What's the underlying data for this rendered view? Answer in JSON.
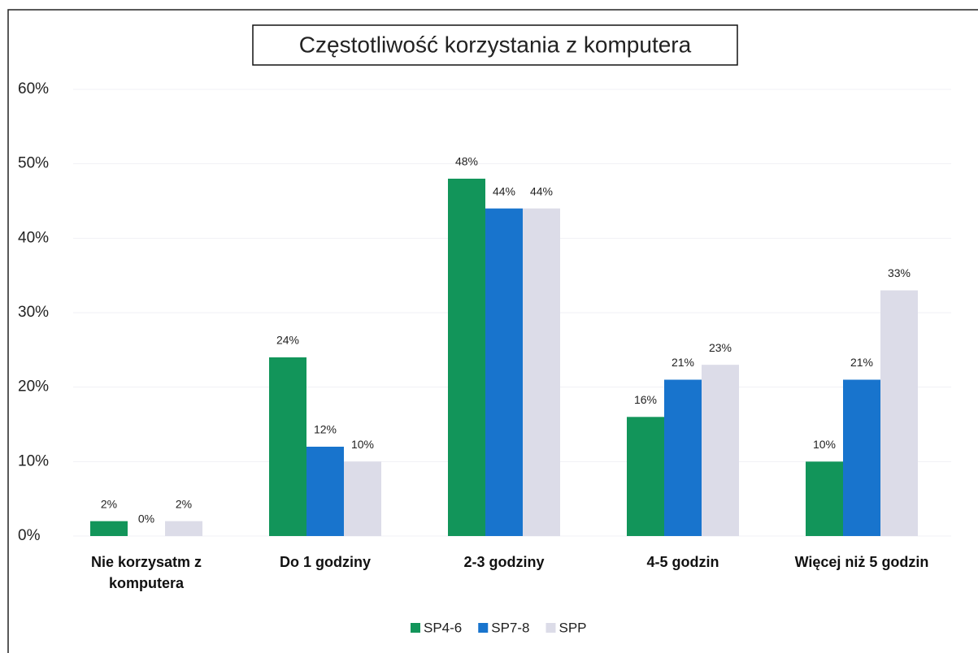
{
  "chart_data": {
    "type": "bar",
    "title": "Częstotliwość korzystania z komputera",
    "categories": [
      "Nie korzysatm z komputera",
      "Do 1 godziny",
      "2-3 godziny",
      "4-5 godzin",
      "Więcej niż 5 godzin"
    ],
    "series": [
      {
        "name": "SP4-6",
        "color": "#12955a",
        "values": [
          2,
          24,
          48,
          16,
          10
        ],
        "value_labels": [
          "2%",
          "24%",
          "48%",
          "16%",
          "10%"
        ]
      },
      {
        "name": "SP7-8",
        "color": "#1874cd",
        "values": [
          0,
          12,
          44,
          21,
          21
        ],
        "value_labels": [
          "0%",
          "12%",
          "44%",
          "21%",
          "21%"
        ]
      },
      {
        "name": "SPP",
        "color": "#dcdce8",
        "values": [
          2,
          10,
          44,
          23,
          33
        ],
        "value_labels": [
          "2%",
          "10%",
          "44%",
          "23%",
          "33%"
        ]
      }
    ],
    "ylim": [
      0,
      60
    ],
    "yticks": [
      {
        "value": 0,
        "label": "0%"
      },
      {
        "value": 10,
        "label": "10%"
      },
      {
        "value": 20,
        "label": "20%"
      },
      {
        "value": 30,
        "label": "30%"
      },
      {
        "value": 40,
        "label": "40%"
      },
      {
        "value": 50,
        "label": "50%"
      },
      {
        "value": 60,
        "label": "60%"
      }
    ],
    "grid": true,
    "legend": "bottom"
  }
}
